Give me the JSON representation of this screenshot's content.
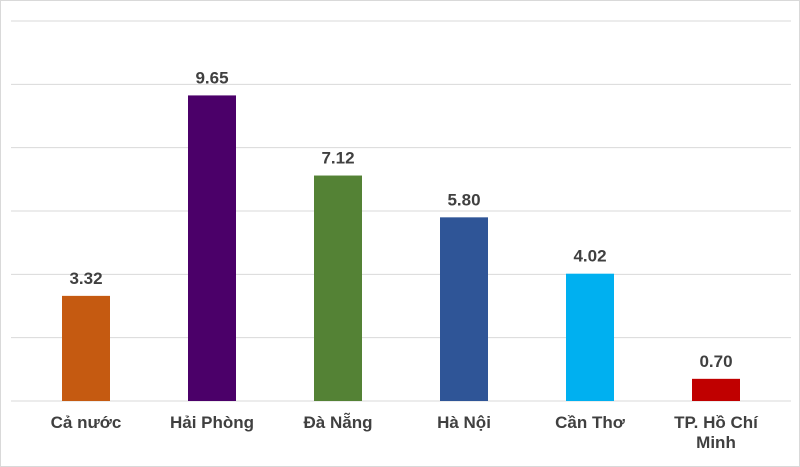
{
  "chart_data": {
    "type": "bar",
    "categories": [
      "Cả nước",
      "Hải Phòng",
      "Đà Nẵng",
      "Hà Nội",
      "Cần Thơ",
      "TP. Hồ Chí Minh"
    ],
    "values": [
      3.32,
      9.65,
      7.12,
      5.8,
      4.02,
      0.7
    ],
    "value_labels": [
      "3.32",
      "9.65",
      "7.12",
      "5.80",
      "4.02",
      "0.70"
    ],
    "colors": [
      "#c55a11",
      "#4b0069",
      "#548235",
      "#2f5597",
      "#00b0f0",
      "#c00000"
    ],
    "ylim": [
      0,
      12
    ],
    "yticks": [
      0,
      2,
      4,
      6,
      8,
      10,
      12
    ],
    "grid": true
  }
}
